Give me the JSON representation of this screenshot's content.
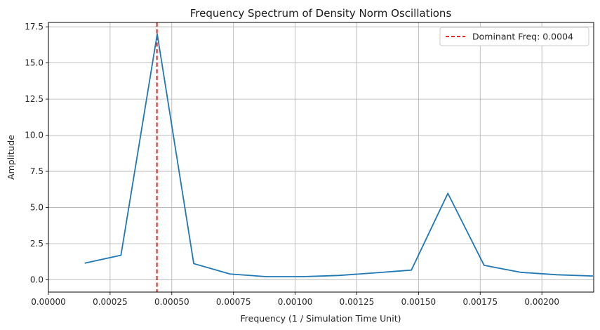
{
  "chart_data": {
    "type": "line",
    "title": "Frequency Spectrum of Density Norm Oscillations",
    "xlabel": "Frequency (1 / Simulation Time Unit)",
    "ylabel": "Amplitude",
    "xlim": [
      0,
      0.00221
    ],
    "ylim": [
      -0.85,
      17.8
    ],
    "x_ticks": [
      0,
      0.00025,
      0.0005,
      0.00075,
      0.001,
      0.00125,
      0.0015,
      0.00175,
      0.002
    ],
    "x_tick_labels": [
      "0.00000",
      "0.00025",
      "0.00050",
      "0.00075",
      "0.00100",
      "0.00125",
      "0.00150",
      "0.00175",
      "0.00200"
    ],
    "y_ticks": [
      0,
      2.5,
      5,
      7.5,
      10,
      12.5,
      15,
      17.5
    ],
    "y_tick_labels": [
      "0.0",
      "2.5",
      "5.0",
      "7.5",
      "10.0",
      "12.5",
      "15.0",
      "17.5"
    ],
    "grid": true,
    "legend_position": "top-right",
    "series": [
      {
        "color": "#1f77b4",
        "x": [
          0.000147,
          0.000294,
          0.000441,
          0.000589,
          0.000736,
          0.000883,
          0.00103,
          0.001177,
          0.001324,
          0.001471,
          0.001619,
          0.001766,
          0.001913,
          0.00206,
          0.002207
        ],
        "y": [
          1.15,
          1.7,
          17.0,
          1.12,
          0.4,
          0.22,
          0.22,
          0.3,
          0.48,
          0.67,
          5.98,
          1.0,
          0.52,
          0.35,
          0.26
        ]
      }
    ],
    "annotations": [
      {
        "kind": "vline",
        "x": 0.00044,
        "color": "#ff0000",
        "style": "dashed",
        "label": "Dominant Freq: 0.0004"
      }
    ]
  }
}
